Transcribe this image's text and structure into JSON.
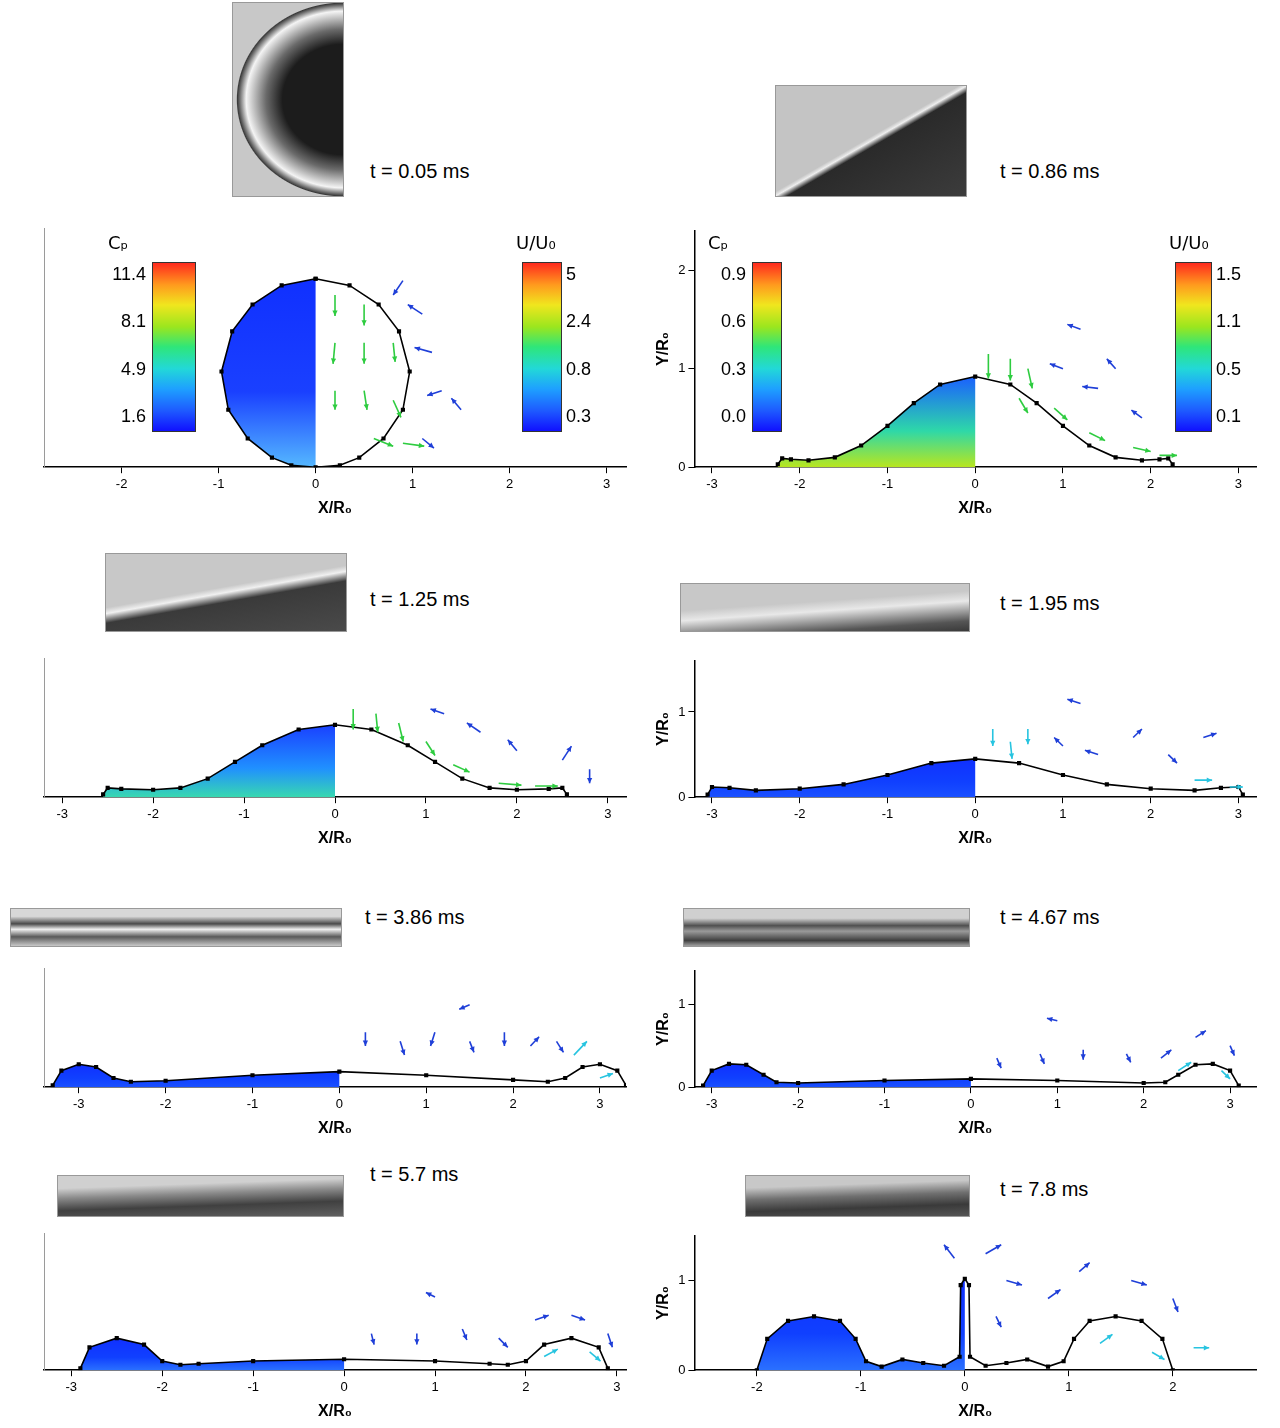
{
  "chart_data": [
    {
      "type": "line",
      "title": "t = 0.05 ms",
      "x_label": "X/R₀",
      "grid": false,
      "tick_labels": "x",
      "color": "#000000",
      "marker": "square",
      "line_style": "solid",
      "xlim": [
        -2.8,
        3.2
      ],
      "xticks": [
        -2,
        -1,
        0,
        1,
        2,
        3
      ],
      "ylim": [
        0,
        2.5
      ],
      "x": [
        0,
        -0.35,
        -0.65,
        -0.86,
        -0.97,
        -0.9,
        -0.7,
        -0.45,
        -0.25,
        0,
        0.25,
        0.45,
        0.7,
        0.9,
        0.97,
        0.86,
        0.65,
        0.35,
        0
      ],
      "values": [
        1.97,
        1.9,
        1.7,
        1.42,
        1.0,
        0.6,
        0.3,
        0.1,
        0.02,
        0,
        0.02,
        0.1,
        0.3,
        0.6,
        1.0,
        1.42,
        1.7,
        1.9,
        1.97
      ],
      "colorbars": [
        {
          "title": "Cₚ",
          "ticks": [
            1.6,
            4.9,
            8.1,
            11.4
          ]
        },
        {
          "title": "U/U₀",
          "ticks": [
            0.3,
            0.8,
            2.4,
            5
          ]
        }
      ],
      "vectors": [
        {
          "color": "#2ecc40",
          "x": [
            0.2,
            0.5,
            0.2,
            0.5,
            0.8,
            0.2,
            0.5,
            0.8,
            0.6,
            0.9
          ],
          "y": [
            1.8,
            1.7,
            1.3,
            1.3,
            1.3,
            0.8,
            0.8,
            0.7,
            0.3,
            0.25
          ],
          "u": [
            0,
            0,
            -0.02,
            0,
            0.02,
            0,
            0.03,
            0.08,
            0.2,
            0.22
          ],
          "v": [
            -0.22,
            -0.22,
            -0.22,
            -0.22,
            -0.2,
            -0.2,
            -0.2,
            -0.18,
            -0.08,
            -0.03
          ]
        },
        {
          "color": "#1f3fd8",
          "x": [
            1.1,
            1.2,
            1.3,
            0.9,
            1.5,
            1.1
          ],
          "y": [
            1.6,
            1.2,
            0.8,
            1.95,
            0.6,
            0.3
          ],
          "u": [
            -0.15,
            -0.18,
            -0.15,
            -0.1,
            -0.1,
            0.12
          ],
          "v": [
            0.1,
            0.05,
            -0.05,
            -0.15,
            0.12,
            -0.1
          ]
        }
      ]
    },
    {
      "type": "line",
      "title": "t = 0.86 ms",
      "x_label": "X/R₀",
      "y_label": "Y/R₀",
      "grid": false,
      "color": "#000000",
      "marker": "square",
      "line_style": "solid",
      "xlim": [
        -3.2,
        3.2
      ],
      "xticks": [
        -3,
        -2,
        -1,
        0,
        1,
        2,
        3
      ],
      "ylim": [
        0,
        2.4
      ],
      "yticks": [
        0,
        1,
        2
      ],
      "x": [
        -2.25,
        -2.2,
        -2.1,
        -1.9,
        -1.6,
        -1.3,
        -1.0,
        -0.7,
        -0.4,
        0,
        0.4,
        0.7,
        1.0,
        1.3,
        1.6,
        1.9,
        2.1,
        2.2,
        2.25
      ],
      "values": [
        0.03,
        0.09,
        0.08,
        0.07,
        0.1,
        0.22,
        0.42,
        0.65,
        0.84,
        0.92,
        0.84,
        0.65,
        0.42,
        0.22,
        0.1,
        0.07,
        0.08,
        0.09,
        0.03
      ],
      "colorbars": [
        {
          "title": "Cₚ",
          "ticks": [
            {
              "value": 0,
              "label": "0.0"
            },
            0.3,
            0.6,
            0.9
          ]
        },
        {
          "title": "U/U₀",
          "ticks": [
            0.1,
            0.5,
            1.1,
            1.5
          ]
        }
      ],
      "vectors": [
        {
          "color": "#2ecc40",
          "x": [
            0.15,
            0.4,
            0.6,
            0.5,
            0.9,
            1.3,
            1.8,
            2.1
          ],
          "y": [
            1.15,
            1.1,
            1.0,
            0.7,
            0.6,
            0.35,
            0.2,
            0.12
          ],
          "u": [
            0,
            0,
            0.05,
            0.1,
            0.15,
            0.18,
            0.2,
            0.2
          ],
          "v": [
            -0.25,
            -0.22,
            -0.2,
            -0.15,
            -0.12,
            -0.08,
            -0.04,
            0
          ]
        },
        {
          "color": "#1f3fd8",
          "x": [
            1.0,
            1.4,
            1.6,
            1.9,
            1.2
          ],
          "y": [
            1.0,
            0.8,
            1.0,
            0.5,
            1.4
          ],
          "u": [
            -0.15,
            -0.18,
            -0.1,
            -0.12,
            -0.15
          ],
          "v": [
            0.05,
            0.02,
            0.1,
            0.08,
            0.05
          ]
        }
      ]
    },
    {
      "type": "line",
      "title": "t = 1.25 ms",
      "x_label": "X/R₀",
      "grid": false,
      "tick_labels": "x",
      "color": "#000000",
      "marker": "square",
      "line_style": "solid",
      "xlim": [
        -3.2,
        3.2
      ],
      "xticks": [
        -3,
        -2,
        -1,
        0,
        1,
        2,
        3
      ],
      "ylim": [
        0,
        1.5
      ],
      "x": [
        -2.55,
        -2.5,
        -2.35,
        -2.0,
        -1.7,
        -1.4,
        -1.1,
        -0.8,
        -0.4,
        0,
        0.4,
        0.8,
        1.1,
        1.4,
        1.7,
        2.0,
        2.35,
        2.5,
        2.55
      ],
      "values": [
        0.03,
        0.1,
        0.09,
        0.08,
        0.1,
        0.2,
        0.38,
        0.56,
        0.73,
        0.78,
        0.73,
        0.56,
        0.38,
        0.2,
        0.1,
        0.08,
        0.09,
        0.1,
        0.03
      ],
      "vectors": [
        {
          "color": "#2ecc40",
          "x": [
            0.2,
            0.45,
            0.7,
            1.0,
            1.3,
            1.8,
            2.2
          ],
          "y": [
            0.95,
            0.9,
            0.8,
            0.6,
            0.35,
            0.15,
            0.12
          ],
          "u": [
            0,
            0.02,
            0.05,
            0.1,
            0.18,
            0.25,
            0.25
          ],
          "v": [
            -0.22,
            -0.2,
            -0.2,
            -0.15,
            -0.08,
            -0.02,
            0
          ]
        },
        {
          "color": "#1f3fd8",
          "x": [
            1.2,
            1.6,
            2.0,
            2.5,
            2.8
          ],
          "y": [
            0.9,
            0.7,
            0.5,
            0.4,
            0.3
          ],
          "u": [
            -0.15,
            -0.15,
            -0.1,
            0.1,
            0
          ],
          "v": [
            0.05,
            0.1,
            0.12,
            0.15,
            -0.15
          ]
        }
      ]
    },
    {
      "type": "line",
      "title": "t = 1.95 ms",
      "x_label": "X/R₀",
      "y_label": "Y/R₀",
      "grid": false,
      "color": "#000000",
      "marker": "square",
      "line_style": "solid",
      "xlim": [
        -3.2,
        3.2
      ],
      "xticks": [
        -3,
        -2,
        -1,
        0,
        1,
        2,
        3
      ],
      "ylim": [
        0,
        1.6
      ],
      "yticks": [
        0,
        1
      ],
      "x": [
        -3.05,
        -3.0,
        -2.8,
        -2.5,
        -2.0,
        -1.5,
        -1.0,
        -0.5,
        0,
        0.5,
        1.0,
        1.5,
        2.0,
        2.5,
        2.8,
        3.0,
        3.05
      ],
      "values": [
        0.03,
        0.12,
        0.11,
        0.08,
        0.1,
        0.15,
        0.26,
        0.4,
        0.45,
        0.4,
        0.26,
        0.15,
        0.1,
        0.08,
        0.11,
        0.12,
        0.03
      ],
      "vectors": [
        {
          "color": "#27c4e0",
          "x": [
            0.2,
            0.4,
            0.6,
            2.5,
            2.9
          ],
          "y": [
            0.8,
            0.65,
            0.8,
            0.2,
            0.12
          ],
          "u": [
            0,
            0.02,
            0,
            0.2,
            0.15
          ],
          "v": [
            -0.2,
            -0.2,
            -0.18,
            0,
            0
          ]
        },
        {
          "color": "#1f3fd8",
          "x": [
            1.0,
            1.4,
            1.8,
            2.2,
            2.6,
            1.2
          ],
          "y": [
            0.6,
            0.5,
            0.7,
            0.5,
            0.7,
            1.1
          ],
          "u": [
            -0.1,
            -0.15,
            0.1,
            0.1,
            0.15,
            -0.15
          ],
          "v": [
            0.1,
            0.05,
            0.1,
            -0.1,
            0.05,
            0.05
          ]
        }
      ]
    },
    {
      "type": "line",
      "title": "t = 3.86 ms",
      "x_label": "X/R₀",
      "grid": false,
      "tick_labels": "x",
      "color": "#000000",
      "marker": "square",
      "line_style": "solid",
      "xlim": [
        -3.4,
        3.3
      ],
      "xticks": [
        -3,
        -2,
        -1,
        0,
        1,
        2,
        3
      ],
      "ylim": [
        0,
        1.3
      ],
      "x": [
        -3.3,
        -3.2,
        -3.0,
        -2.8,
        -2.6,
        -2.4,
        -2.0,
        -1.0,
        0,
        1.0,
        2.0,
        2.4,
        2.6,
        2.8,
        3.0,
        3.2,
        3.3
      ],
      "values": [
        0.02,
        0.18,
        0.25,
        0.22,
        0.1,
        0.06,
        0.07,
        0.13,
        0.17,
        0.13,
        0.08,
        0.06,
        0.1,
        0.22,
        0.25,
        0.18,
        0.02
      ],
      "vectors": [
        {
          "color": "#1f3fd8",
          "x": [
            0.3,
            0.7,
            1.1,
            1.5,
            1.9,
            2.2,
            2.5,
            1.5
          ],
          "y": [
            0.6,
            0.5,
            0.6,
            0.5,
            0.6,
            0.45,
            0.5,
            0.9
          ],
          "u": [
            0,
            0.05,
            -0.05,
            0.05,
            0,
            0.1,
            0.08,
            -0.12
          ],
          "v": [
            -0.15,
            -0.15,
            -0.15,
            -0.12,
            -0.15,
            0.1,
            -0.12,
            -0.05
          ]
        },
        {
          "color": "#27c4e0",
          "x": [
            2.7,
            3.0
          ],
          "y": [
            0.35,
            0.1
          ],
          "u": [
            0.15,
            0.15
          ],
          "v": [
            0.15,
            0.05
          ]
        }
      ]
    },
    {
      "type": "line",
      "title": "t = 4.67 ms",
      "x_label": "X/R₀",
      "y_label": "Y/R₀",
      "grid": false,
      "color": "#000000",
      "marker": "square",
      "line_style": "solid",
      "xlim": [
        -3.2,
        3.3
      ],
      "xticks": [
        -3,
        -2,
        -1,
        0,
        1,
        2,
        3
      ],
      "ylim": [
        0,
        1.4
      ],
      "yticks": [
        0,
        1
      ],
      "x": [
        -3.1,
        -3.0,
        -2.8,
        -2.6,
        -2.4,
        -2.25,
        -2.0,
        -1.0,
        0,
        1.0,
        2.0,
        2.25,
        2.4,
        2.6,
        2.8,
        3.0,
        3.1
      ],
      "values": [
        0.02,
        0.2,
        0.28,
        0.27,
        0.15,
        0.06,
        0.05,
        0.08,
        0.1,
        0.08,
        0.05,
        0.06,
        0.15,
        0.27,
        0.28,
        0.2,
        0.02
      ],
      "vectors": [
        {
          "color": "#1f3fd8",
          "x": [
            0.3,
            0.8,
            1.3,
            1.8,
            2.2,
            2.6,
            3.0,
            1.0
          ],
          "y": [
            0.35,
            0.4,
            0.45,
            0.4,
            0.35,
            0.6,
            0.5,
            0.8
          ],
          "u": [
            0.05,
            0.05,
            0,
            0.05,
            0.12,
            0.12,
            0.05,
            -0.12
          ],
          "v": [
            -0.12,
            -0.12,
            -0.12,
            -0.1,
            0.1,
            0.08,
            -0.12,
            0.03
          ]
        },
        {
          "color": "#27c4e0",
          "x": [
            2.4,
            2.9
          ],
          "y": [
            0.2,
            0.2
          ],
          "u": [
            0.15,
            0.1
          ],
          "v": [
            0.1,
            -0.1
          ]
        }
      ]
    },
    {
      "type": "line",
      "title": "t = 5.7 ms",
      "x_label": "X/R₀",
      "grid": false,
      "tick_labels": "x",
      "color": "#000000",
      "marker": "square",
      "line_style": "solid",
      "xlim": [
        -3.3,
        3.1
      ],
      "xticks": [
        -3,
        -2,
        -1,
        0,
        1,
        2,
        3
      ],
      "ylim": [
        0,
        1.5
      ],
      "x": [
        -2.9,
        -2.8,
        -2.5,
        -2.2,
        -2.0,
        -1.8,
        -1.6,
        -1.0,
        0,
        1.0,
        1.6,
        1.8,
        2.0,
        2.2,
        2.5,
        2.8,
        2.9
      ],
      "values": [
        0.02,
        0.25,
        0.35,
        0.28,
        0.1,
        0.06,
        0.07,
        0.1,
        0.12,
        0.1,
        0.07,
        0.06,
        0.1,
        0.28,
        0.35,
        0.25,
        0.02
      ],
      "vectors": [
        {
          "color": "#1f3fd8",
          "x": [
            0.3,
            0.8,
            1.3,
            1.7,
            2.1,
            2.5,
            2.9,
            1.0
          ],
          "y": [
            0.4,
            0.4,
            0.45,
            0.35,
            0.55,
            0.6,
            0.4,
            0.8
          ],
          "u": [
            0.03,
            0,
            0.05,
            0.1,
            0.15,
            0.15,
            0.05,
            -0.1
          ],
          "v": [
            -0.12,
            -0.12,
            -0.12,
            -0.1,
            0.05,
            -0.05,
            -0.15,
            0.05
          ]
        },
        {
          "color": "#27c4e0",
          "x": [
            2.2,
            2.7
          ],
          "y": [
            0.15,
            0.2
          ],
          "u": [
            0.15,
            0.12
          ],
          "v": [
            0.08,
            -0.1
          ]
        }
      ]
    },
    {
      "type": "line",
      "title": "t = 7.8 ms",
      "x_label": "X/R₀",
      "y_label": "Y/R₀",
      "grid": false,
      "color": "#000000",
      "marker": "square",
      "line_style": "solid",
      "xlim": [
        -2.6,
        2.8
      ],
      "xticks": [
        -2,
        -1,
        0,
        1,
        2
      ],
      "ylim": [
        0,
        1.5
      ],
      "yticks": [
        0,
        1
      ],
      "x": [
        -2.0,
        -1.9,
        -1.7,
        -1.45,
        -1.2,
        -1.05,
        -0.95,
        -0.8,
        -0.6,
        -0.4,
        -0.2,
        -0.05,
        -0.04,
        0,
        0.04,
        0.05,
        0.2,
        0.4,
        0.6,
        0.8,
        0.95,
        1.05,
        1.2,
        1.45,
        1.7,
        1.9,
        2.0
      ],
      "values": [
        0,
        0.35,
        0.55,
        0.6,
        0.55,
        0.35,
        0.1,
        0.04,
        0.12,
        0.08,
        0.05,
        0.15,
        0.95,
        1.02,
        0.95,
        0.15,
        0.05,
        0.08,
        0.12,
        0.04,
        0.1,
        0.35,
        0.55,
        0.6,
        0.55,
        0.35,
        0
      ],
      "vectors": [
        {
          "color": "#1f3fd8",
          "x": [
            0.2,
            0.4,
            0.3,
            0.8,
            1.1,
            1.6,
            2.0,
            -0.1
          ],
          "y": [
            1.3,
            1.0,
            0.6,
            0.8,
            1.1,
            1.0,
            0.8,
            1.25
          ],
          "u": [
            0.15,
            0.15,
            0.05,
            0.12,
            0.1,
            0.15,
            0.05,
            -0.1
          ],
          "v": [
            0.1,
            -0.05,
            -0.12,
            0.1,
            0.1,
            -0.05,
            -0.15,
            0.15
          ]
        },
        {
          "color": "#27c4e0",
          "x": [
            1.3,
            1.8,
            2.2
          ],
          "y": [
            0.3,
            0.2,
            0.25
          ],
          "u": [
            0.12,
            0.12,
            0.15
          ],
          "v": [
            0.1,
            -0.08,
            0
          ]
        }
      ]
    }
  ]
}
